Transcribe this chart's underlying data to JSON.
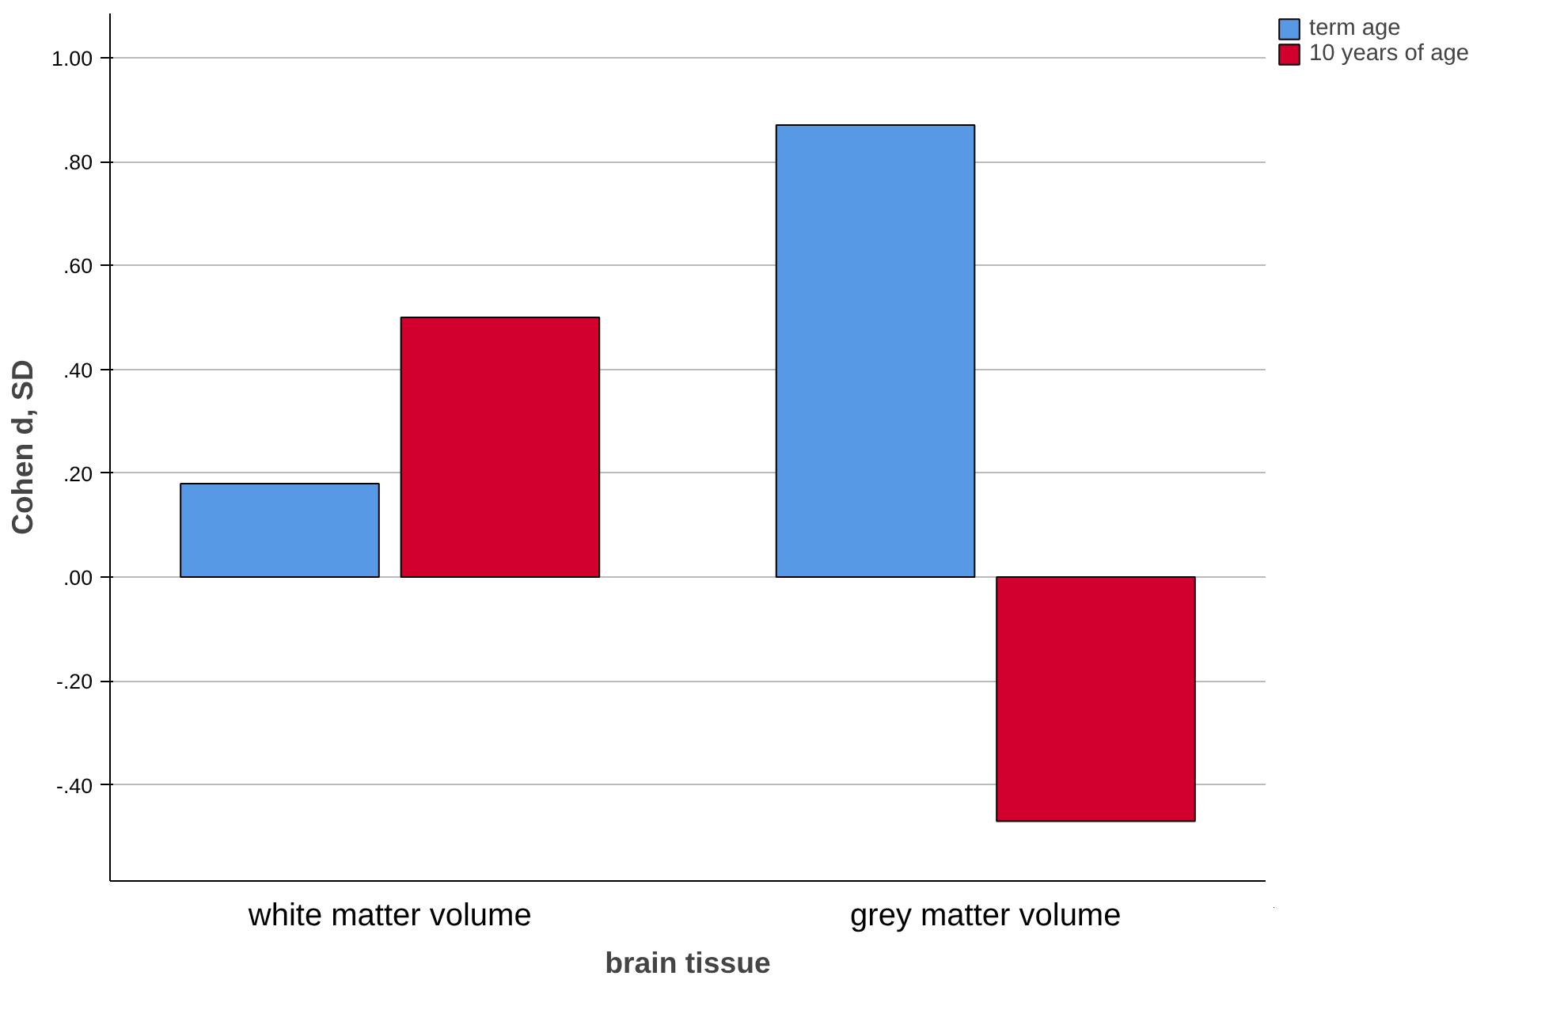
{
  "chart_data": {
    "type": "bar",
    "xlabel": "brain tissue",
    "ylabel": "Cohen d, SD",
    "categories": [
      "white matter volume",
      "grey matter volume"
    ],
    "series": [
      {
        "name": "term age",
        "color": "#5899e6",
        "values": [
          0.18,
          0.87
        ]
      },
      {
        "name": "10 years of age",
        "color": "#d1002d",
        "values": [
          0.5,
          -0.47
        ]
      }
    ],
    "ylim": [
      -0.585,
      1.085
    ],
    "yticks": [
      {
        "value": -0.4,
        "label": "-.40"
      },
      {
        "value": -0.2,
        "label": "-.20"
      },
      {
        "value": 0,
        "label": ".00"
      },
      {
        "value": 0.2,
        "label": ".20"
      },
      {
        "value": 0.4,
        "label": ".40"
      },
      {
        "value": 0.6,
        "label": ".60"
      },
      {
        "value": 0.8,
        "label": ".80"
      },
      {
        "value": 1.0,
        "label": "1.00"
      }
    ],
    "grid": "y",
    "legend": "top right"
  }
}
